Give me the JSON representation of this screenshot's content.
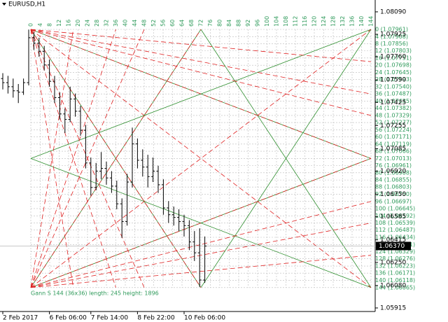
{
  "chart_data": {
    "type": "ohlc",
    "title": "EURUSD,H1",
    "categories": [
      "2 Feb 2017",
      null,
      null,
      null,
      null,
      null,
      null,
      null,
      null,
      "6 Feb 06:00",
      null,
      null,
      null,
      null,
      null,
      null,
      null,
      "7 Feb 14:00",
      null,
      null,
      null,
      null,
      null,
      null,
      null,
      null,
      "8 Feb 22:00",
      null,
      null,
      null,
      null,
      null,
      null,
      null,
      null,
      "10 Feb 06:00",
      null,
      null,
      null,
      null
    ],
    "values": [
      [
        1.076,
        1.0764,
        1.0752,
        1.0757
      ],
      [
        1.0757,
        1.0762,
        1.0749,
        1.0754
      ],
      [
        1.0754,
        1.076,
        1.0746,
        1.0751
      ],
      [
        1.0751,
        1.0756,
        1.0742,
        1.075
      ],
      [
        1.075,
        1.076,
        1.0748,
        1.0757
      ],
      [
        1.0757,
        1.0796,
        1.0755,
        1.079
      ],
      [
        1.079,
        1.0794,
        1.0781,
        1.0786
      ],
      [
        1.0786,
        1.079,
        1.0776,
        1.078
      ],
      [
        1.078,
        1.0784,
        1.0766,
        1.077
      ],
      [
        1.077,
        1.0774,
        1.0754,
        1.0758
      ],
      [
        1.0758,
        1.0762,
        1.0742,
        1.0746
      ],
      [
        1.0746,
        1.075,
        1.073,
        1.0734
      ],
      [
        1.0734,
        1.0738,
        1.072,
        1.073
      ],
      [
        1.073,
        1.0754,
        1.0728,
        1.0745
      ],
      [
        1.0745,
        1.0749,
        1.0732,
        1.0736
      ],
      [
        1.0736,
        1.074,
        1.0718,
        1.0722
      ],
      [
        1.0722,
        1.0726,
        1.0694,
        1.0698
      ],
      [
        1.0698,
        1.0702,
        1.0674,
        1.068
      ],
      [
        1.068,
        1.0698,
        1.0678,
        1.0692
      ],
      [
        1.0692,
        1.0706,
        1.0686,
        1.0694
      ],
      [
        1.0694,
        1.0699,
        1.0682,
        1.0687
      ],
      [
        1.0687,
        1.0692,
        1.0676,
        1.0681
      ],
      [
        1.0681,
        1.0685,
        1.0664,
        1.0668
      ],
      [
        1.0668,
        1.0672,
        1.0643,
        1.0655
      ],
      [
        1.0655,
        1.069,
        1.0652,
        1.0684
      ],
      [
        1.0684,
        1.0724,
        1.068,
        1.0712
      ],
      [
        1.0712,
        1.0716,
        1.0694,
        1.07
      ],
      [
        1.07,
        1.0708,
        1.0688,
        1.0695
      ],
      [
        1.0695,
        1.0704,
        1.068,
        1.0688
      ],
      [
        1.0688,
        1.0702,
        1.0684,
        1.0692
      ],
      [
        1.0692,
        1.0696,
        1.0676,
        1.0682
      ],
      [
        1.0682,
        1.0686,
        1.066,
        1.0665
      ],
      [
        1.0665,
        1.067,
        1.0654,
        1.066
      ],
      [
        1.066,
        1.0666,
        1.0652,
        1.0658
      ],
      [
        1.0658,
        1.0664,
        1.0648,
        1.0655
      ],
      [
        1.0655,
        1.066,
        1.0644,
        1.0652
      ],
      [
        1.0652,
        1.0656,
        1.0634,
        1.064
      ],
      [
        1.064,
        1.0648,
        1.0626,
        1.0632
      ],
      [
        1.0632,
        1.065,
        1.0607,
        1.0612
      ],
      [
        1.0612,
        1.0644,
        1.061,
        1.0637
      ]
    ],
    "color": "#000000",
    "ylim": [
      1.05889,
      1.08177
    ],
    "yticks": [
      {
        "value": 1.0809,
        "label": "1.08090"
      },
      1.07925,
      {
        "value": 1.0776,
        "label": "1.07760"
      },
      {
        "value": 1.0759,
        "label": "1.07590"
      },
      1.07425,
      1.07255,
      1.07085,
      {
        "value": 1.0692,
        "label": "1.06920"
      },
      {
        "value": 1.0675,
        "label": "1.06750"
      },
      1.06585,
      1.06415,
      {
        "value": 1.0625,
        "label": "1.06250"
      },
      {
        "value": 1.0608,
        "label": "1.06080"
      },
      1.05915
    ],
    "current_price": {
      "value": 1.0637,
      "label": "1.06370"
    },
    "gann": {
      "color": "#2e9a5a",
      "line_color": "#2f8f2f",
      "fan_color": "#e02020",
      "top_labels": [
        0,
        4,
        8,
        12,
        16,
        20,
        24,
        28,
        32,
        36,
        40,
        44,
        48,
        52,
        56,
        60,
        64,
        68,
        72,
        76,
        80,
        84,
        88,
        92,
        96,
        100,
        104,
        108,
        112,
        116,
        120,
        124,
        128,
        132,
        136,
        140,
        144
      ],
      "levels": [
        {
          "value": 1.07961,
          "label": "0 (1.07961)"
        },
        {
          "value": 1.07908,
          "label": "4 (1.07908)"
        },
        {
          "value": 1.07856,
          "label": "8 (1.07856)"
        },
        {
          "value": 1.07803,
          "label": "12 (1.07803)"
        },
        {
          "value": 1.07751,
          "label": "16 (1.07751)"
        },
        {
          "value": 1.07698,
          "label": "20 (1.07698)"
        },
        {
          "value": 1.07645,
          "label": "24 (1.07645)"
        },
        {
          "value": 1.07593,
          "label": "28 (1.07593)"
        },
        {
          "value": 1.0754,
          "label": "32 (1.07540)"
        },
        {
          "value": 1.07487,
          "label": "36 (1.07487)"
        },
        {
          "value": 1.07435,
          "label": "40 (1.07435)"
        },
        {
          "value": 1.07382,
          "label": "44 (1.07382)"
        },
        {
          "value": 1.07329,
          "label": "48 (1.07329)"
        },
        {
          "value": 1.07277,
          "label": "52 (1.07277)"
        },
        {
          "value": 1.07224,
          "label": "56 (1.07224)"
        },
        {
          "value": 1.07171,
          "label": "60 (1.07171)"
        },
        {
          "value": 1.07119,
          "label": "64 (1.07119)"
        },
        {
          "value": 1.07066,
          "label": "68 (1.07066)"
        },
        {
          "value": 1.07013,
          "label": "72 (1.07013)"
        },
        {
          "value": 1.06961,
          "label": "76 (1.06961)"
        },
        {
          "value": 1.06908,
          "label": "80 (1.06908)"
        },
        {
          "value": 1.06855,
          "label": "84 (1.06855)"
        },
        {
          "value": 1.06803,
          "label": "88 (1.06803)"
        },
        {
          "value": 1.0675,
          "label": "92 (1.06750)"
        },
        {
          "value": 1.06697,
          "label": "96 (1.06697)"
        },
        {
          "value": 1.06645,
          "label": "100 (1.06645)"
        },
        {
          "value": 1.06592,
          "label": "104 (1.06592)"
        },
        {
          "value": 1.06539,
          "label": "108 (1.06539)"
        },
        {
          "value": 1.06487,
          "label": "112 (1.06487)"
        },
        {
          "value": 1.06434,
          "label": "116 (1.06434)"
        },
        {
          "value": 1.06381,
          "label": "120 (1.06381)"
        },
        {
          "value": 1.06329,
          "label": "124 (1.06329)"
        },
        {
          "value": 1.06276,
          "label": "128 (1.06276)"
        },
        {
          "value": 1.06223,
          "label": "132 (1.06223)"
        },
        {
          "value": 1.06171,
          "label": "136 (1.06171)"
        },
        {
          "value": 1.06118,
          "label": "140 (1.06118)"
        },
        {
          "value": 1.06065,
          "label": "144 (1.06065)"
        }
      ],
      "info": "Gann S 144 (36x36) length: 245 height: 1896"
    }
  }
}
